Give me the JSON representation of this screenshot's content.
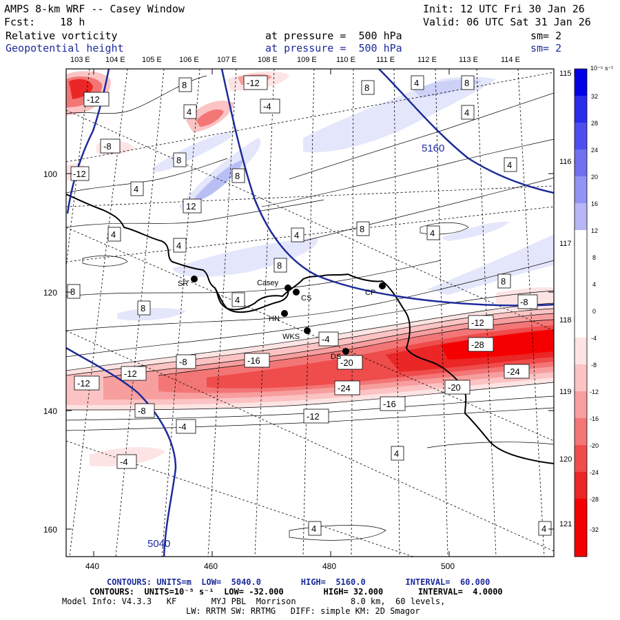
{
  "header": {
    "title": "AMPS 8-km WRF -- Casey Window",
    "init": "Init: 12 UTC Fri 30 Jan 26",
    "fcst": "Fcst:    18 h",
    "valid": "Valid: 06 UTC Sat 31 Jan 26",
    "field1": "Relative vorticity",
    "field1_level": "at pressure =  500 hPa",
    "field1_sm": "sm= 2",
    "field2": "Geopotential height",
    "field2_level": "at pressure =  500 hPa",
    "field2_sm": "sm= 2"
  },
  "colors": {
    "height_contour": "#1c2a9a",
    "coast": "#000000",
    "neg_max": "#f40000",
    "pos_max": "#0000e6"
  },
  "map": {
    "lon_labels_top": [
      "103 E",
      "104 E",
      "105 E",
      "106 E",
      "107 E",
      "108 E",
      "109 E",
      "110 E",
      "111 E",
      "112 E",
      "113 E",
      "114 E"
    ],
    "lon_labels_right": [
      "115 E",
      "116 E",
      "117 E",
      "118 E",
      "119 E",
      "120 E",
      "121 E"
    ],
    "y_ticks": [
      "100",
      "120",
      "140",
      "160"
    ],
    "x_ticks": [
      "440",
      "460",
      "480",
      "500"
    ],
    "stations": [
      {
        "id": "SR",
        "label": "SR"
      },
      {
        "id": "CASEY",
        "label": "Casey"
      },
      {
        "id": "CS",
        "label": "CS"
      },
      {
        "id": "CP",
        "label": "CP"
      },
      {
        "id": "HN",
        "label": "HN"
      },
      {
        "id": "WKS",
        "label": "WKS"
      },
      {
        "id": "DS",
        "label": "DS"
      }
    ],
    "height_labels": [
      "5160",
      "5040"
    ],
    "vort_labels": [
      "-12",
      "-12",
      "-8",
      "-4",
      "4",
      "8",
      "-12",
      "-4",
      "8",
      "4",
      "8",
      "4",
      "8",
      "12",
      "4",
      "8",
      "4",
      "4",
      "4",
      "8",
      "4",
      "8",
      "4",
      "8",
      "-8",
      "8",
      "8",
      "4",
      "-4",
      "-12",
      "-28",
      "-8",
      "-16",
      "-20",
      "-12",
      "-12",
      "-24",
      "-20",
      "-24",
      "-8",
      "-16",
      "-12",
      "-4",
      "-4",
      "4",
      "4",
      "4"
    ]
  },
  "colorbar": {
    "unit": "10⁻⁵ s⁻¹",
    "ticks": [
      "32",
      "28",
      "24",
      "20",
      "16",
      "12",
      "8",
      "4",
      "0",
      "-4",
      "-8",
      "-12",
      "-16",
      "-20",
      "-24",
      "-28",
      "-32"
    ]
  },
  "footer": {
    "line1": "CONTOURS: UNITS=m  LOW=  5040.0        HIGH=  5160.0        INTERVAL=  60.000",
    "line2": "CONTOURS:  UNITS=10⁻⁵ s⁻¹  LOW= -32.000        HIGH= 32.000       INTERVAL=  4.0000",
    "line3": "Model Info: V4.3.3   KF       MYJ PBL  Morrison           8.0 km,  60 levels,",
    "line4": "LW: RRTM SW: RRTMG   DIFF: simple KM: 2D Smagor"
  }
}
